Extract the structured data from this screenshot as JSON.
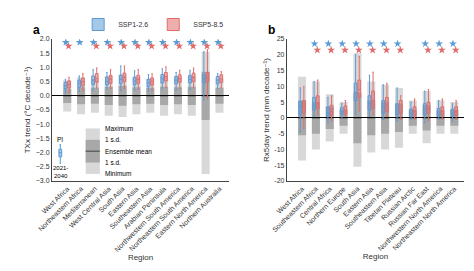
{
  "chart_data": [
    {
      "type": "box",
      "title": "a",
      "x_label": "Region",
      "y_label": "TXx trend (°C decade⁻¹)",
      "categories": [
        "West Africa",
        "Northeastern Africa",
        "Mediterranean",
        "West Central Asia",
        "South Asia",
        "Eastern Asia",
        "Southeastern Asia",
        "Arabian Peninsula",
        "Northwestern South America",
        "Northeastern South America",
        "Eastern North America",
        "Northern Australia"
      ],
      "ylim": [
        -3.0,
        2.0
      ],
      "yticks": [
        {
          "value": -3.0,
          "label": "−3.0"
        },
        {
          "value": -2.5,
          "label": "−2.5"
        },
        {
          "value": -2.0,
          "label": "−2.0"
        },
        {
          "value": -1.5,
          "label": "−1.5"
        },
        {
          "value": -1.0,
          "label": "−1.0"
        },
        {
          "value": -0.5,
          "label": "−0.5"
        },
        {
          "value": 0.0,
          "label": "0.0"
        },
        {
          "value": 0.5,
          "label": "0.5"
        },
        {
          "value": 1.0,
          "label": "1.0"
        },
        {
          "value": 1.5,
          "label": "1.5"
        },
        {
          "value": 2.0,
          "label": "2.0"
        }
      ],
      "grid": false,
      "legend": "top right",
      "series": [
        {
          "name": "SSP1-2.6",
          "color": "#5b9bd5",
          "marker": "star",
          "significance_y": 1.88,
          "significant": [
            true,
            true,
            true,
            true,
            true,
            true,
            true,
            true,
            true,
            true,
            true,
            true
          ],
          "boxes": [
            {
              "med": 0.35,
              "q1": 0.25,
              "q3": 0.47,
              "whislo": 0.1,
              "whishi": 0.58
            },
            {
              "med": 0.45,
              "q1": 0.3,
              "q3": 0.55,
              "whislo": 0.15,
              "whishi": 0.7
            },
            {
              "med": 0.55,
              "q1": 0.4,
              "q3": 0.7,
              "whislo": 0.2,
              "whishi": 0.92
            },
            {
              "med": 0.5,
              "q1": 0.38,
              "q3": 0.65,
              "whislo": 0.22,
              "whishi": 0.82
            },
            {
              "med": 0.58,
              "q1": 0.42,
              "q3": 0.72,
              "whislo": 0.18,
              "whishi": 1.05
            },
            {
              "med": 0.52,
              "q1": 0.38,
              "q3": 0.66,
              "whislo": 0.2,
              "whishi": 0.88
            },
            {
              "med": 0.45,
              "q1": 0.32,
              "q3": 0.58,
              "whislo": 0.15,
              "whishi": 0.75
            },
            {
              "med": 0.6,
              "q1": 0.45,
              "q3": 0.75,
              "whislo": 0.25,
              "whishi": 0.95
            },
            {
              "med": 0.55,
              "q1": 0.42,
              "q3": 0.68,
              "whislo": 0.2,
              "whishi": 0.82
            },
            {
              "med": 0.58,
              "q1": 0.45,
              "q3": 0.72,
              "whislo": 0.22,
              "whishi": 0.9
            },
            {
              "med": 0.6,
              "q1": 0.45,
              "q3": 0.75,
              "whislo": -0.15,
              "whishi": 1.55
            },
            {
              "med": 0.55,
              "q1": 0.42,
              "q3": 0.68,
              "whislo": 0.25,
              "whishi": 0.78
            }
          ]
        },
        {
          "name": "SSP5-8.5",
          "color": "#e06c6c",
          "marker": "star",
          "significance_y": 1.75,
          "significant": [
            true,
            false,
            true,
            true,
            true,
            true,
            true,
            true,
            true,
            true,
            true,
            true
          ],
          "boxes": [
            {
              "med": 0.4,
              "q1": 0.28,
              "q3": 0.52,
              "whislo": 0.12,
              "whishi": 0.65
            },
            {
              "med": 0.5,
              "q1": 0.35,
              "q3": 0.62,
              "whislo": 0.18,
              "whishi": 0.78
            },
            {
              "med": 0.62,
              "q1": 0.48,
              "q3": 0.78,
              "whislo": 0.28,
              "whishi": 0.98
            },
            {
              "med": 0.58,
              "q1": 0.44,
              "q3": 0.72,
              "whislo": 0.25,
              "whishi": 0.92
            },
            {
              "med": 0.65,
              "q1": 0.5,
              "q3": 0.8,
              "whislo": 0.25,
              "whishi": 1.05
            },
            {
              "med": 0.58,
              "q1": 0.44,
              "q3": 0.72,
              "whislo": 0.22,
              "whishi": 0.92
            },
            {
              "med": 0.5,
              "q1": 0.38,
              "q3": 0.63,
              "whislo": 0.18,
              "whishi": 0.78
            },
            {
              "med": 0.68,
              "q1": 0.52,
              "q3": 0.82,
              "whislo": 0.3,
              "whishi": 1.02
            },
            {
              "med": 0.6,
              "q1": 0.48,
              "q3": 0.74,
              "whislo": 0.25,
              "whishi": 0.9
            },
            {
              "med": 0.65,
              "q1": 0.5,
              "q3": 0.8,
              "whislo": 0.28,
              "whishi": 0.98
            },
            {
              "med": 0.65,
              "q1": 0.5,
              "q3": 0.82,
              "whislo": -0.1,
              "whishi": 1.62
            },
            {
              "med": 0.6,
              "q1": 0.47,
              "q3": 0.74,
              "whislo": 0.28,
              "whishi": 0.85
            }
          ]
        }
      ],
      "reference_box": {
        "label": "PI",
        "period_label": "2021-\n2040",
        "color": "#5b9bd5",
        "med": -2.0,
        "q1": -2.15,
        "q3": -1.88,
        "whislo": -2.38,
        "whishi": -1.72
      },
      "ensemble_mean": 0,
      "ensemble_range": [
        {
          "min": -0.55,
          "max": 0.55,
          "sd_low": -0.25,
          "sd_high": 0.25
        },
        {
          "min": -0.65,
          "max": 0.65,
          "sd_low": -0.3,
          "sd_high": 0.3
        },
        {
          "min": -0.6,
          "max": 0.6,
          "sd_low": -0.28,
          "sd_high": 0.28
        },
        {
          "min": -0.7,
          "max": 0.7,
          "sd_low": -0.32,
          "sd_high": 0.32
        },
        {
          "min": -0.75,
          "max": 0.75,
          "sd_low": -0.35,
          "sd_high": 0.35
        },
        {
          "min": -0.65,
          "max": 0.65,
          "sd_low": -0.3,
          "sd_high": 0.3
        },
        {
          "min": -0.6,
          "max": 0.6,
          "sd_low": -0.28,
          "sd_high": 0.28
        },
        {
          "min": -0.7,
          "max": 0.7,
          "sd_low": -0.32,
          "sd_high": 0.32
        },
        {
          "min": -0.65,
          "max": 0.65,
          "sd_low": -0.3,
          "sd_high": 0.3
        },
        {
          "min": -0.7,
          "max": 0.7,
          "sd_low": -0.32,
          "sd_high": 0.32
        },
        {
          "min": -2.75,
          "max": 1.55,
          "sd_low": -0.85,
          "sd_high": 0.85
        },
        {
          "min": -0.6,
          "max": 0.6,
          "sd_low": -0.28,
          "sd_high": 0.28
        }
      ],
      "range_colors": {
        "outer": "#d8d8d8",
        "inner": "#a8a8a8",
        "mean": "#404040"
      },
      "key_labels": [
        "Maximum",
        "1 s.d.",
        "Ensemble mean",
        "1 s.d.",
        "Minimum"
      ]
    },
    {
      "type": "box",
      "title": "b",
      "x_label": "Region",
      "y_label": "Rx5day trend (mm decade⁻¹)",
      "categories": [
        "West Africa",
        "Southeastern Africa",
        "Central Africa",
        "Northern Europe",
        "South Asia",
        "Eastern Asia",
        "Southeastern Asia",
        "Tibetan Plateau",
        "Russian Arctic",
        "Russian Far East",
        "Northwestern North America",
        "Northeastern North America"
      ],
      "ylim": [
        -20,
        25
      ],
      "yticks": [
        -20,
        -15,
        -10,
        -5,
        0,
        5,
        10,
        15,
        20,
        25
      ],
      "grid": false,
      "series": [
        {
          "color": "#5b9bd5",
          "marker": "star",
          "significance_y": 23.5,
          "significant": [
            false,
            true,
            true,
            true,
            true,
            true,
            true,
            true,
            false,
            true,
            true,
            true
          ],
          "boxes": [
            {
              "med": 3.5,
              "q1": 1.0,
              "q3": 5.2,
              "whislo": -4.5,
              "whishi": 9.5
            },
            {
              "med": 4.0,
              "q1": 2.5,
              "q3": 6.5,
              "whislo": 0.5,
              "whishi": 11.5
            },
            {
              "med": 1.5,
              "q1": 0.5,
              "q3": 3.5,
              "whislo": -1.5,
              "whishi": 6.5
            },
            {
              "med": 2.0,
              "q1": 1.0,
              "q3": 3.2,
              "whislo": 0.2,
              "whishi": 4.5
            },
            {
              "med": 8.0,
              "q1": 5.5,
              "q3": 11.0,
              "whislo": 1.0,
              "whishi": 20.0
            },
            {
              "med": 4.5,
              "q1": 2.5,
              "q3": 7.0,
              "whislo": 0.5,
              "whishi": 13.5
            },
            {
              "med": 3.5,
              "q1": 1.5,
              "q3": 5.5,
              "whislo": -0.5,
              "whishi": 10.5
            },
            {
              "med": 2.5,
              "q1": 1.0,
              "q3": 4.5,
              "whislo": -1.0,
              "whishi": 9.5
            },
            {
              "med": 1.5,
              "q1": 0.5,
              "q3": 2.8,
              "whislo": -0.5,
              "whishi": 5.0
            },
            {
              "med": 2.5,
              "q1": 1.0,
              "q3": 4.5,
              "whislo": -1.5,
              "whishi": 8.5
            },
            {
              "med": 1.5,
              "q1": 0.5,
              "q3": 3.0,
              "whislo": -0.5,
              "whishi": 5.5
            },
            {
              "med": 1.5,
              "q1": 0.5,
              "q3": 2.8,
              "whislo": -1.0,
              "whishi": 4.5
            }
          ]
        },
        {
          "color": "#e06c6c",
          "marker": "star",
          "significance_y": 21.5,
          "significant": [
            false,
            true,
            true,
            true,
            true,
            true,
            true,
            true,
            false,
            true,
            true,
            true
          ],
          "boxes": [
            {
              "med": 3.8,
              "q1": 1.5,
              "q3": 5.5,
              "whislo": -3.5,
              "whishi": 10.0
            },
            {
              "med": 4.5,
              "q1": 3.0,
              "q3": 7.0,
              "whislo": 1.0,
              "whishi": 12.0
            },
            {
              "med": 2.0,
              "q1": 0.8,
              "q3": 4.0,
              "whislo": -1.0,
              "whishi": 7.0
            },
            {
              "med": 2.5,
              "q1": 1.2,
              "q3": 3.8,
              "whislo": 0.5,
              "whishi": 5.5
            },
            {
              "med": 9.0,
              "q1": 6.5,
              "q3": 12.0,
              "whislo": 2.0,
              "whishi": 19.5
            },
            {
              "med": 5.5,
              "q1": 3.0,
              "q3": 8.5,
              "whislo": 1.0,
              "whishi": 14.5
            },
            {
              "med": 4.0,
              "q1": 2.0,
              "q3": 6.5,
              "whislo": 0.5,
              "whishi": 11.0
            },
            {
              "med": 3.5,
              "q1": 1.5,
              "q3": 5.5,
              "whislo": -0.5,
              "whishi": 7.0
            },
            {
              "med": 2.0,
              "q1": 0.8,
              "q3": 3.5,
              "whislo": -0.5,
              "whishi": 6.0
            },
            {
              "med": 3.0,
              "q1": 1.5,
              "q3": 5.0,
              "whislo": -1.0,
              "whishi": 9.0
            },
            {
              "med": 2.0,
              "q1": 0.8,
              "q3": 3.5,
              "whislo": -0.5,
              "whishi": 6.0
            },
            {
              "med": 2.0,
              "q1": 0.8,
              "q3": 3.5,
              "whislo": -0.5,
              "whishi": 5.5
            }
          ]
        }
      ],
      "ensemble_mean": 0,
      "ensemble_range": [
        {
          "min": -13.5,
          "max": 13.0,
          "sd_low": -5.5,
          "sd_high": 5.5
        },
        {
          "min": -10.0,
          "max": 11.5,
          "sd_low": -5.0,
          "sd_high": 5.0
        },
        {
          "min": -7.5,
          "max": 7.5,
          "sd_low": -3.5,
          "sd_high": 3.5
        },
        {
          "min": -5.0,
          "max": 5.0,
          "sd_low": -2.5,
          "sd_high": 2.5
        },
        {
          "min": -15.5,
          "max": 20.5,
          "sd_low": -8.0,
          "sd_high": 8.0
        },
        {
          "min": -11.0,
          "max": 11.5,
          "sd_low": -5.5,
          "sd_high": 5.5
        },
        {
          "min": -10.0,
          "max": 10.5,
          "sd_low": -5.0,
          "sd_high": 5.0
        },
        {
          "min": -9.5,
          "max": 9.5,
          "sd_low": -4.5,
          "sd_high": 4.5
        },
        {
          "min": -5.0,
          "max": 5.5,
          "sd_low": -2.5,
          "sd_high": 2.5
        },
        {
          "min": -8.0,
          "max": 8.5,
          "sd_low": -4.0,
          "sd_high": 4.0
        },
        {
          "min": -5.0,
          "max": 5.5,
          "sd_low": -2.5,
          "sd_high": 2.5
        },
        {
          "min": -5.0,
          "max": 5.0,
          "sd_low": -2.5,
          "sd_high": 2.5
        }
      ],
      "range_colors": {
        "outer": "#d8d8d8",
        "inner": "#a8a8a8",
        "mean": "#404040"
      }
    }
  ]
}
